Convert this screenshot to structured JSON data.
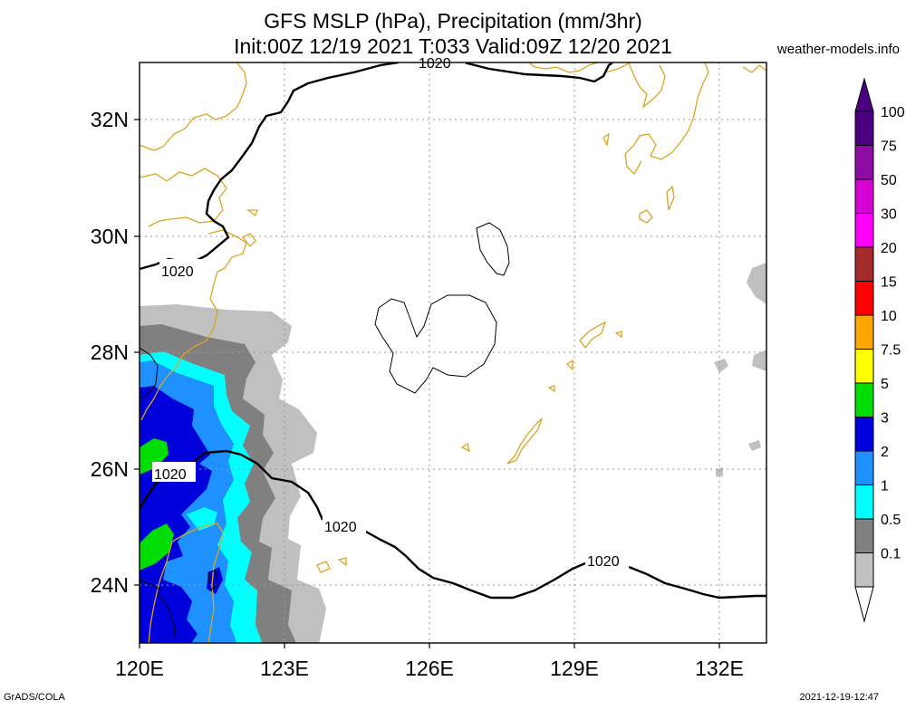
{
  "title": {
    "line1": "GFS MSLP (hPa), Precipitation (mm/3hr)",
    "line2": "Init:00Z 12/19 2021 T:033 Valid:09Z 12/20 2021"
  },
  "site": "weather-models.info",
  "footer": {
    "left": "GrADS/COLA",
    "right": "2021-12-19-12:47"
  },
  "axes": {
    "lon_ticks": [
      "120E",
      "123E",
      "126E",
      "129E",
      "132E"
    ],
    "lat_ticks": [
      "32N",
      "30N",
      "28N",
      "26N",
      "24N"
    ],
    "lon_range": [
      120,
      133
    ],
    "lat_range": [
      23,
      33
    ],
    "grid": "dotted"
  },
  "isobars": [
    {
      "label": "1020",
      "value": 1020
    },
    {
      "label": "1020",
      "value": 1020
    },
    {
      "label": "1020",
      "value": 1020
    },
    {
      "label": "1020",
      "value": 1020
    },
    {
      "label": "1020",
      "value": 1020
    }
  ],
  "colorbar": {
    "levels": [
      {
        "label": "100",
        "color": "#4b0082"
      },
      {
        "label": "75",
        "color": "#8e0ba5"
      },
      {
        "label": "50",
        "color": "#d400d4"
      },
      {
        "label": "30",
        "color": "#ff00ff"
      },
      {
        "label": "20",
        "color": "#a52a2a"
      },
      {
        "label": "15",
        "color": "#ff0000"
      },
      {
        "label": "10",
        "color": "#ffa500"
      },
      {
        "label": "7.5",
        "color": "#ffff00"
      },
      {
        "label": "5",
        "color": "#00dd00"
      },
      {
        "label": "3",
        "color": "#0000dd"
      },
      {
        "label": "2",
        "color": "#1e90ff"
      },
      {
        "label": "1",
        "color": "#00ffff"
      },
      {
        "label": "0.5",
        "color": "#808080"
      },
      {
        "label": "0.1",
        "color": "#c0c0c0"
      }
    ],
    "top_arrow_color": "#4b0082",
    "bottom_arrow_color": "#ffffff"
  },
  "colors": {
    "coast": "#daa520",
    "isobar": "#000000",
    "grid": "#999999"
  }
}
